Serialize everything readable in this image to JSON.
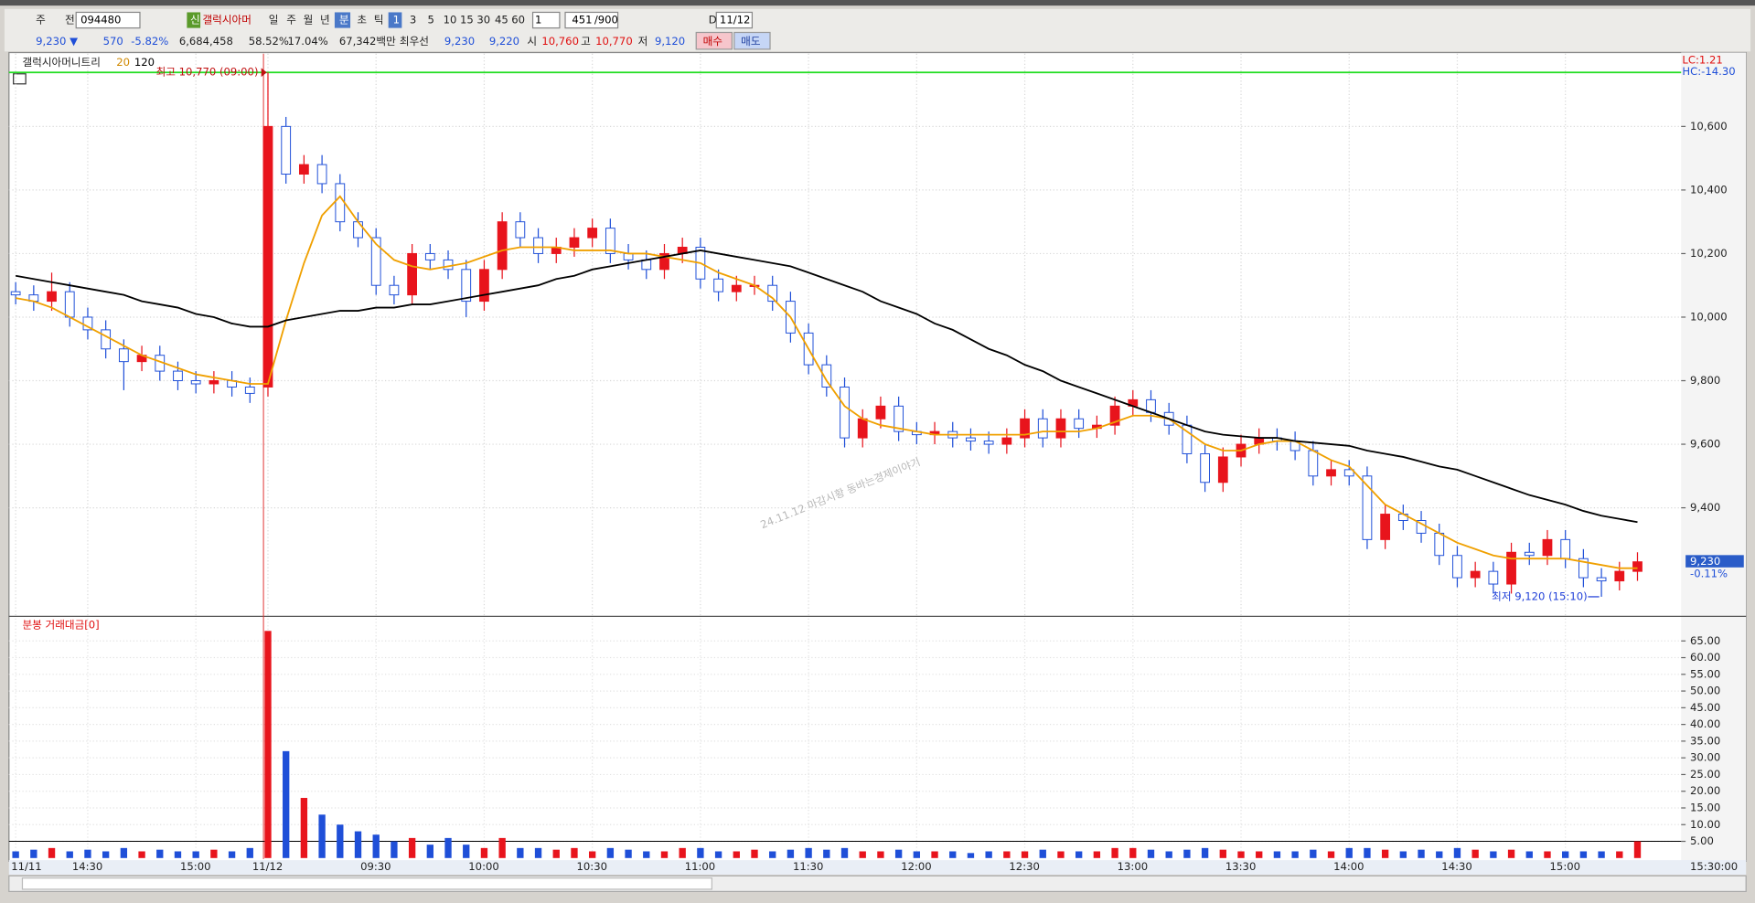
{
  "toolbar": {
    "items": [
      "주",
      "전",
      "094480",
      "신",
      "갤럭시아머",
      "일",
      "주",
      "월",
      "년",
      "분",
      "초",
      "틱",
      "1",
      "3",
      "5",
      "10",
      "15",
      "30",
      "45",
      "60",
      "1",
      "451",
      "/900",
      "D",
      "11/12"
    ]
  },
  "quote": {
    "items": [
      "9,230 ▼",
      "570",
      "-5.82%",
      "6,684,458",
      "58.52%",
      "17.04%",
      "67,342백만",
      "최우선",
      "9,230",
      "9,220",
      "시",
      "10,760",
      "고",
      "10,770",
      "저",
      "9,120",
      "매수",
      "매도"
    ]
  },
  "chart_data": [
    {
      "type": "candlestick",
      "title": "갤럭시아머니트리",
      "up_color": "#e8141c",
      "down_color": "#1f4fd8",
      "open": [
        10080,
        10070,
        10050,
        10080,
        10000,
        9960,
        9900,
        9860,
        9880,
        9830,
        9800,
        9790,
        9800,
        9780,
        9780,
        10600,
        10450,
        10480,
        10420,
        10300,
        10250,
        10100,
        10070,
        10200,
        10180,
        10150,
        10050,
        10150,
        10300,
        10250,
        10200,
        10220,
        10250,
        10280,
        10200,
        10180,
        10150,
        10200,
        10220,
        10120,
        10080,
        10100,
        10100,
        10050,
        9950,
        9850,
        9780,
        9620,
        9680,
        9720,
        9640,
        9630,
        9640,
        9620,
        9610,
        9600,
        9620,
        9680,
        9620,
        9680,
        9650,
        9660,
        9720,
        9740,
        9700,
        9660,
        9570,
        9480,
        9560,
        9600,
        9620,
        9610,
        9580,
        9500,
        9520,
        9500,
        9300,
        9380,
        9360,
        9320,
        9250,
        9180,
        9200,
        9160,
        9260,
        9250,
        9300,
        9240,
        9180,
        9170,
        9200
      ],
      "high": [
        10110,
        10100,
        10140,
        10110,
        10030,
        9990,
        9930,
        9910,
        9910,
        9860,
        9830,
        9830,
        9830,
        9810,
        10770,
        10630,
        10510,
        10510,
        10450,
        10330,
        10280,
        10130,
        10230,
        10230,
        10210,
        10180,
        10180,
        10330,
        10330,
        10280,
        10250,
        10280,
        10310,
        10310,
        10230,
        10210,
        10230,
        10250,
        10250,
        10150,
        10130,
        10130,
        10130,
        10080,
        9980,
        9880,
        9810,
        9710,
        9750,
        9750,
        9670,
        9670,
        9670,
        9650,
        9640,
        9650,
        9710,
        9710,
        9710,
        9710,
        9690,
        9750,
        9770,
        9770,
        9730,
        9690,
        9600,
        9590,
        9630,
        9650,
        9650,
        9640,
        9610,
        9550,
        9550,
        9530,
        9410,
        9410,
        9390,
        9350,
        9280,
        9230,
        9230,
        9290,
        9290,
        9330,
        9330,
        9270,
        9210,
        9230,
        9260
      ],
      "low": [
        10040,
        10020,
        10020,
        9970,
        9930,
        9870,
        9770,
        9830,
        9800,
        9770,
        9760,
        9760,
        9750,
        9730,
        9750,
        10420,
        10420,
        10390,
        10270,
        10220,
        10070,
        10040,
        10040,
        10150,
        10120,
        10000,
        10020,
        10120,
        10220,
        10170,
        10170,
        10190,
        10220,
        10170,
        10150,
        10120,
        10120,
        10170,
        10090,
        10050,
        10050,
        10070,
        10020,
        9920,
        9820,
        9750,
        9590,
        9590,
        9650,
        9610,
        9600,
        9600,
        9590,
        9580,
        9570,
        9570,
        9590,
        9590,
        9590,
        9620,
        9620,
        9630,
        9690,
        9670,
        9630,
        9540,
        9450,
        9450,
        9530,
        9570,
        9580,
        9550,
        9470,
        9470,
        9470,
        9270,
        9270,
        9330,
        9290,
        9220,
        9150,
        9150,
        9130,
        9130,
        9220,
        9220,
        9210,
        9150,
        9120,
        9140,
        9170
      ],
      "close": [
        10070,
        10050,
        10080,
        10000,
        9960,
        9900,
        9860,
        9880,
        9830,
        9800,
        9790,
        9800,
        9780,
        9760,
        10600,
        10450,
        10480,
        10420,
        10300,
        10250,
        10100,
        10070,
        10200,
        10180,
        10150,
        10050,
        10150,
        10300,
        10250,
        10200,
        10220,
        10250,
        10280,
        10200,
        10180,
        10150,
        10200,
        10220,
        10120,
        10080,
        10100,
        10100,
        10050,
        9950,
        9850,
        9780,
        9620,
        9680,
        9720,
        9640,
        9630,
        9640,
        9620,
        9610,
        9600,
        9620,
        9680,
        9620,
        9680,
        9650,
        9660,
        9720,
        9740,
        9700,
        9660,
        9570,
        9480,
        9560,
        9600,
        9620,
        9610,
        9580,
        9500,
        9520,
        9500,
        9300,
        9380,
        9360,
        9320,
        9250,
        9180,
        9200,
        9160,
        9260,
        9250,
        9300,
        9240,
        9180,
        9170,
        9200,
        9230
      ],
      "series": [
        {
          "name": "20",
          "color": "#f0a000",
          "values": [
            10060,
            10050,
            10030,
            10000,
            9970,
            9940,
            9910,
            9880,
            9860,
            9840,
            9820,
            9810,
            9800,
            9790,
            9790,
            9990,
            10170,
            10320,
            10380,
            10300,
            10230,
            10180,
            10160,
            10150,
            10160,
            10170,
            10190,
            10210,
            10220,
            10220,
            10220,
            10210,
            10210,
            10210,
            10200,
            10200,
            10190,
            10180,
            10170,
            10140,
            10120,
            10100,
            10060,
            10000,
            9900,
            9800,
            9720,
            9680,
            9660,
            9650,
            9640,
            9630,
            9630,
            9630,
            9630,
            9630,
            9630,
            9640,
            9640,
            9640,
            9650,
            9670,
            9690,
            9690,
            9680,
            9640,
            9600,
            9580,
            9580,
            9600,
            9610,
            9610,
            9580,
            9550,
            9530,
            9470,
            9410,
            9380,
            9350,
            9320,
            9290,
            9270,
            9250,
            9240,
            9240,
            9240,
            9240,
            9230,
            9220,
            9210,
            9210
          ]
        },
        {
          "name": "120",
          "color": "#000000",
          "values": [
            10130,
            10120,
            10110,
            10100,
            10090,
            10080,
            10070,
            10050,
            10040,
            10030,
            10010,
            10000,
            9980,
            9970,
            9970,
            9990,
            10000,
            10010,
            10020,
            10020,
            10030,
            10030,
            10040,
            10040,
            10050,
            10060,
            10070,
            10080,
            10090,
            10100,
            10120,
            10130,
            10150,
            10160,
            10170,
            10180,
            10190,
            10200,
            10210,
            10200,
            10190,
            10180,
            10170,
            10160,
            10140,
            10120,
            10100,
            10080,
            10050,
            10030,
            10010,
            9980,
            9960,
            9930,
            9900,
            9880,
            9850,
            9830,
            9800,
            9780,
            9760,
            9740,
            9720,
            9700,
            9680,
            9660,
            9640,
            9630,
            9625,
            9620,
            9620,
            9610,
            9605,
            9600,
            9595,
            9580,
            9570,
            9560,
            9545,
            9530,
            9520,
            9500,
            9480,
            9460,
            9440,
            9425,
            9410,
            9390,
            9375,
            9365,
            9355
          ]
        }
      ],
      "ylim": [
        9062,
        10829
      ],
      "yticks": [
        {
          "value": 9400,
          "label": "9,400"
        },
        {
          "value": 9600,
          "label": "9,600"
        },
        {
          "value": 9800,
          "label": "9,800"
        },
        {
          "value": 10000,
          "label": "10,000"
        },
        {
          "value": 10200,
          "label": "10,200"
        },
        {
          "value": 10400,
          "label": "10,400"
        },
        {
          "value": 10600,
          "label": "10,600"
        }
      ],
      "grid": true,
      "reference_line": {
        "value": 10770,
        "color": "#22dd22"
      },
      "annotations": {
        "high": "최고 10,770 (09:00)",
        "low": "최저 9,120 (15:10)",
        "lc": "LC:1.21",
        "hc": "HC:-14.30",
        "watermark": "24.11.12 마감시황 동바는경제이야기"
      },
      "last_price": {
        "value": 9230,
        "label": "9,230",
        "change": "-0.11%"
      }
    },
    {
      "type": "bar",
      "title": "분봉 거래대금[0]",
      "categories": [
        "11/11",
        null,
        null,
        null,
        "14:30",
        null,
        null,
        null,
        null,
        null,
        "15:00",
        null,
        null,
        null,
        "11/12",
        null,
        null,
        null,
        null,
        null,
        "09:30",
        null,
        null,
        null,
        null,
        null,
        "10:00",
        null,
        null,
        null,
        null,
        null,
        "10:30",
        null,
        null,
        null,
        null,
        null,
        "11:00",
        null,
        null,
        null,
        null,
        null,
        "11:30",
        null,
        null,
        null,
        null,
        null,
        "12:00",
        null,
        null,
        null,
        null,
        null,
        "12:30",
        null,
        null,
        null,
        null,
        null,
        "13:00",
        null,
        null,
        null,
        null,
        null,
        "13:30",
        null,
        null,
        null,
        null,
        null,
        "14:00",
        null,
        null,
        null,
        null,
        null,
        "14:30",
        null,
        null,
        null,
        null,
        null,
        "15:00",
        null,
        null,
        null,
        null
      ],
      "values": [
        2,
        2.5,
        3,
        2,
        2.5,
        2,
        3,
        2,
        2.5,
        2,
        2,
        2.5,
        2,
        3,
        68,
        32,
        18,
        13,
        10,
        8,
        7,
        5,
        6,
        4,
        6,
        4,
        3,
        6,
        3,
        3,
        2.5,
        3,
        2,
        3,
        2.5,
        2,
        2,
        3,
        3,
        2,
        2,
        2.5,
        2,
        2.5,
        3,
        2.5,
        3,
        2,
        2,
        2.5,
        2,
        2,
        2,
        1.5,
        2,
        2,
        2,
        2.5,
        2,
        2,
        2,
        3,
        3,
        2.5,
        2,
        2.5,
        3,
        2.5,
        2,
        2,
        2,
        2,
        2.5,
        2,
        3,
        3,
        2.5,
        2,
        2.5,
        2,
        3,
        2.5,
        2,
        2.5,
        2,
        2,
        2,
        2,
        2,
        2,
        5
      ],
      "x_end_label": "15:30:00",
      "ylim": [
        -0.3,
        71.7
      ],
      "yticks": [
        {
          "value": 5,
          "label": "5.00"
        },
        {
          "value": 10,
          "label": "10.00"
        },
        {
          "value": 15,
          "label": "15.00"
        },
        {
          "value": 20,
          "label": "20.00"
        },
        {
          "value": 25,
          "label": "25.00"
        },
        {
          "value": 30,
          "label": "30.00"
        },
        {
          "value": 35,
          "label": "35.00"
        },
        {
          "value": 40,
          "label": "40.00"
        },
        {
          "value": 45,
          "label": "45.00"
        },
        {
          "value": 50,
          "label": "50.00"
        },
        {
          "value": 55,
          "label": "55.00"
        },
        {
          "value": 60,
          "label": "60.00"
        },
        {
          "value": 65,
          "label": "65.00"
        }
      ],
      "grid": true,
      "reference_line": {
        "value": 5,
        "color": "#000000"
      }
    }
  ]
}
